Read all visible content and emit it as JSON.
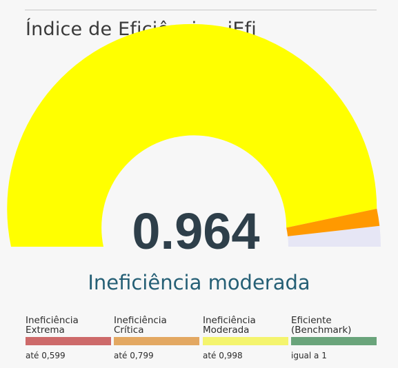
{
  "panel": {
    "title": "Índice de Eficiência - iEfi"
  },
  "chart_data": {
    "type": "gauge",
    "value": 0.964,
    "value_label": "0.964",
    "min": 0,
    "max": 1,
    "status_label": "Ineficiência moderada",
    "colors": {
      "value_fill": "#ffff00",
      "value_tip": "#ff9900",
      "remainder": "#e6e6f5"
    },
    "legend": [
      {
        "name": "Ineficiência\nExtrema",
        "threshold": "até 0,599",
        "color": "#cd6a6a"
      },
      {
        "name": "Ineficiência\nCrítica",
        "threshold": "até 0,799",
        "color": "#e3a862"
      },
      {
        "name": "Ineficiência\nModerada",
        "threshold": "até 0,998",
        "color": "#f4f46e"
      },
      {
        "name": "Eficiente\n(Benchmark)",
        "threshold": "igual a 1",
        "color": "#6aa47b"
      }
    ]
  }
}
